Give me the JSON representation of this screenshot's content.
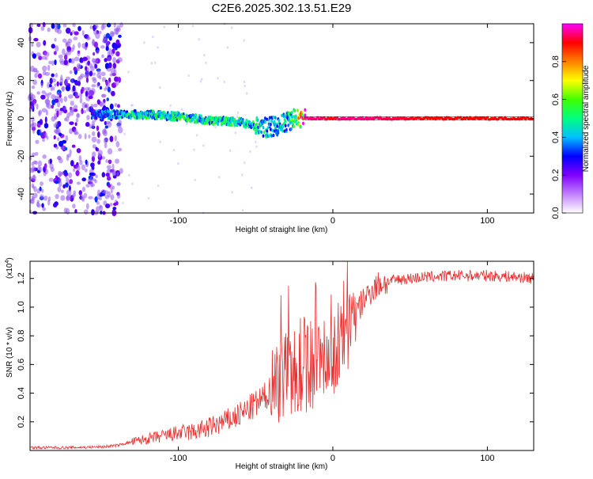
{
  "title": "C2E6.2025.302.13.51.E29",
  "chart_data": [
    {
      "type": "heatmap",
      "name": "spectrogram",
      "xlabel": "Height of straight line (km)",
      "ylabel": "Frequency (Hz)",
      "xlim": [
        -196,
        130
      ],
      "ylim": [
        -50,
        50
      ],
      "xticks": [
        -100,
        0,
        100
      ],
      "xtick_labels": [
        "-100",
        "0",
        "100"
      ],
      "yticks": [
        -40,
        -20,
        0,
        20,
        40
      ],
      "ytick_labels": [
        "-40",
        "-20",
        "0",
        "20",
        "40"
      ],
      "colorbar": {
        "label": "Normalized spectral amplitude",
        "range": [
          0,
          1
        ],
        "ticks": [
          0.0,
          0.2,
          0.4,
          0.6,
          0.8
        ],
        "tick_labels": [
          "0.0",
          "0.2",
          "0.4",
          "0.6",
          "0.8"
        ],
        "colors": [
          "#ffffff",
          "#c080ff",
          "#8000ff",
          "#0000ff",
          "#00c0ff",
          "#00ff80",
          "#40ff00",
          "#ffff00",
          "#ff8000",
          "#ff0000",
          "#ff00ff"
        ]
      },
      "signal_track": {
        "x": [
          -156,
          -140,
          -120,
          -100,
          -80,
          -60,
          -45,
          -35,
          -25,
          -18,
          -10,
          0,
          5,
          20,
          60,
          100,
          130
        ],
        "freq_hz": [
          2,
          2,
          2,
          1,
          -1,
          -2,
          -5,
          -4,
          0,
          0,
          0,
          0,
          0,
          0,
          0,
          0,
          0
        ],
        "amplitude": [
          0.3,
          0.45,
          0.5,
          0.5,
          0.5,
          0.5,
          0.45,
          0.4,
          0.55,
          0.95,
          0.95,
          0.9,
          0.95,
          0.95,
          0.9,
          0.9,
          0.9
        ]
      },
      "noise_region_x": [
        -196,
        -138
      ]
    },
    {
      "type": "line",
      "name": "snr",
      "xlabel": "Height of straight line (km)",
      "ylabel": "SNR (10 * v/v)",
      "y_multiplier": "(x10",
      "y_multiplier_exp": "4",
      "y_multiplier_close": ")",
      "xlim": [
        -196,
        130
      ],
      "ylim": [
        0.0,
        1.32
      ],
      "xticks": [
        -100,
        0,
        100
      ],
      "xtick_labels": [
        "-100",
        "0",
        "100"
      ],
      "yticks": [
        0.2,
        0.4,
        0.6,
        0.8,
        1.0,
        1.2
      ],
      "ytick_labels": [
        "0.2",
        "0.4",
        "0.6",
        "0.8",
        "1.0",
        "1.2"
      ],
      "color": "#e83030",
      "series": [
        {
          "name": "SNR",
          "x": [
            -196,
            -170,
            -150,
            -140,
            -130,
            -120,
            -110,
            -100,
            -90,
            -80,
            -70,
            -60,
            -50,
            -45,
            -40,
            -35,
            -30,
            -27,
            -25,
            -20,
            -15,
            -10,
            -5,
            0,
            3,
            6,
            10,
            15,
            20,
            25,
            30,
            40,
            50,
            60,
            80,
            100,
            120,
            130
          ],
          "y": [
            0.02,
            0.02,
            0.025,
            0.035,
            0.06,
            0.08,
            0.1,
            0.12,
            0.13,
            0.16,
            0.2,
            0.25,
            0.32,
            0.36,
            0.42,
            0.5,
            0.55,
            0.6,
            0.6,
            0.6,
            0.62,
            0.64,
            0.66,
            0.68,
            0.72,
            0.78,
            0.85,
            0.95,
            1.05,
            1.12,
            1.16,
            1.19,
            1.2,
            1.21,
            1.22,
            1.22,
            1.21,
            1.2
          ]
        }
      ]
    }
  ]
}
